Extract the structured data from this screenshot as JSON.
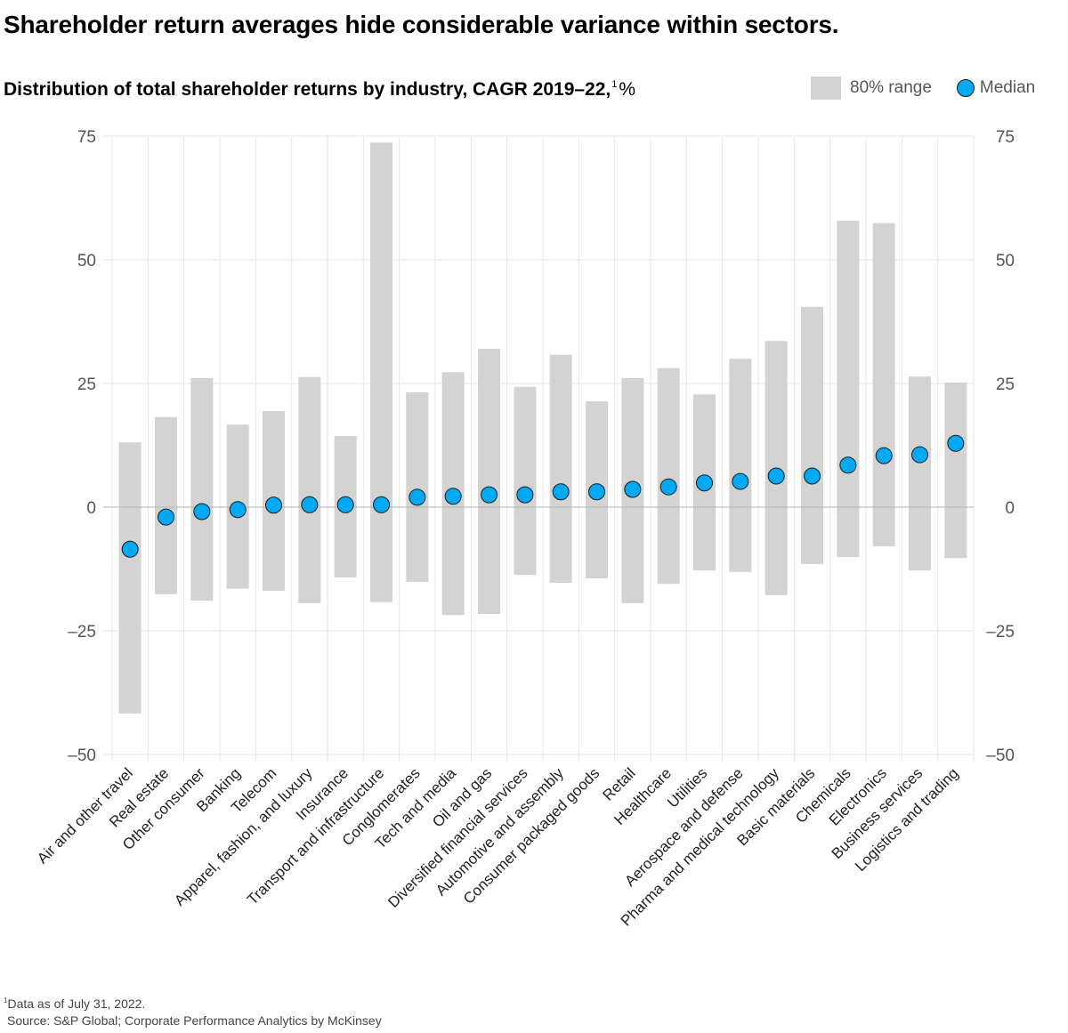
{
  "title": "Shareholder return averages hide considerable variance within sectors.",
  "subtitle": {
    "text": "Distribution of total shareholder returns by industry, CAGR 2019–22,",
    "footnote_marker": "1",
    "unit": "%"
  },
  "legend": {
    "range_label": "80% range",
    "median_label": "Median"
  },
  "colors": {
    "range": "#d3d3d3",
    "median": "#00a9f4",
    "median_stroke": "#1a1a1a",
    "grid": "#e6e6e6",
    "zero_line": "#b3b3b3"
  },
  "footnotes": {
    "marker": "1",
    "note": "Data as of July 31, 2022.",
    "source": "Source: S&P Global; Corporate Performance Analytics by McKinsey"
  },
  "chart_data": {
    "type": "range-dot",
    "title": "Distribution of total shareholder returns by industry, CAGR 2019–22, %",
    "xlabel": "",
    "ylabel": "%",
    "ylim": [
      -50,
      75
    ],
    "yticks": [
      75,
      50,
      25,
      0,
      -25,
      -50
    ],
    "ytick_labels": [
      "75",
      "50",
      "25",
      "0",
      "–25",
      "–50"
    ],
    "grid": true,
    "axis_labels_both_sides": true,
    "legend_position": "top-right",
    "categories": [
      "Air and other travel",
      "Real estate",
      "Other consumer",
      "Banking",
      "Telecom",
      "Apparel, fashion, and luxury",
      "Insurance",
      "Transport and infrastructure",
      "Conglomerates",
      "Tech and media",
      "Oil and gas",
      "Diversified financial services",
      "Automotive and assembly",
      "Consumer packaged goods",
      "Retail",
      "Healthcare",
      "Utilities",
      "Aerospace and defense",
      "Pharma and medical technology",
      "Basic materials",
      "Chemicals",
      "Electronics",
      "Business services",
      "Logistics and trading"
    ],
    "series": [
      {
        "name": "80% range (low)",
        "values": [
          -41.7,
          -17.6,
          -18.9,
          -16.5,
          -16.9,
          -19.4,
          -14.2,
          -19.2,
          -15.1,
          -21.8,
          -21.6,
          -13.7,
          -15.3,
          -14.4,
          -19.4,
          -15.5,
          -12.8,
          -13.1,
          -17.8,
          -11.5,
          -10.1,
          -7.9,
          -12.8,
          -10.3
        ]
      },
      {
        "name": "80% range (high)",
        "values": [
          13.1,
          18.2,
          26.1,
          16.7,
          19.4,
          26.3,
          14.4,
          73.7,
          23.2,
          27.3,
          32.0,
          24.3,
          30.8,
          21.4,
          26.1,
          28.1,
          22.8,
          30.0,
          33.6,
          40.5,
          57.9,
          57.4,
          26.4,
          25.2
        ]
      },
      {
        "name": "Median",
        "values": [
          -8.5,
          -2.0,
          -0.9,
          -0.5,
          0.4,
          0.5,
          0.5,
          0.5,
          2.0,
          2.2,
          2.5,
          2.5,
          3.1,
          3.1,
          3.6,
          4.1,
          4.9,
          5.2,
          6.3,
          6.3,
          8.5,
          10.4,
          10.6,
          12.9
        ]
      }
    ]
  }
}
